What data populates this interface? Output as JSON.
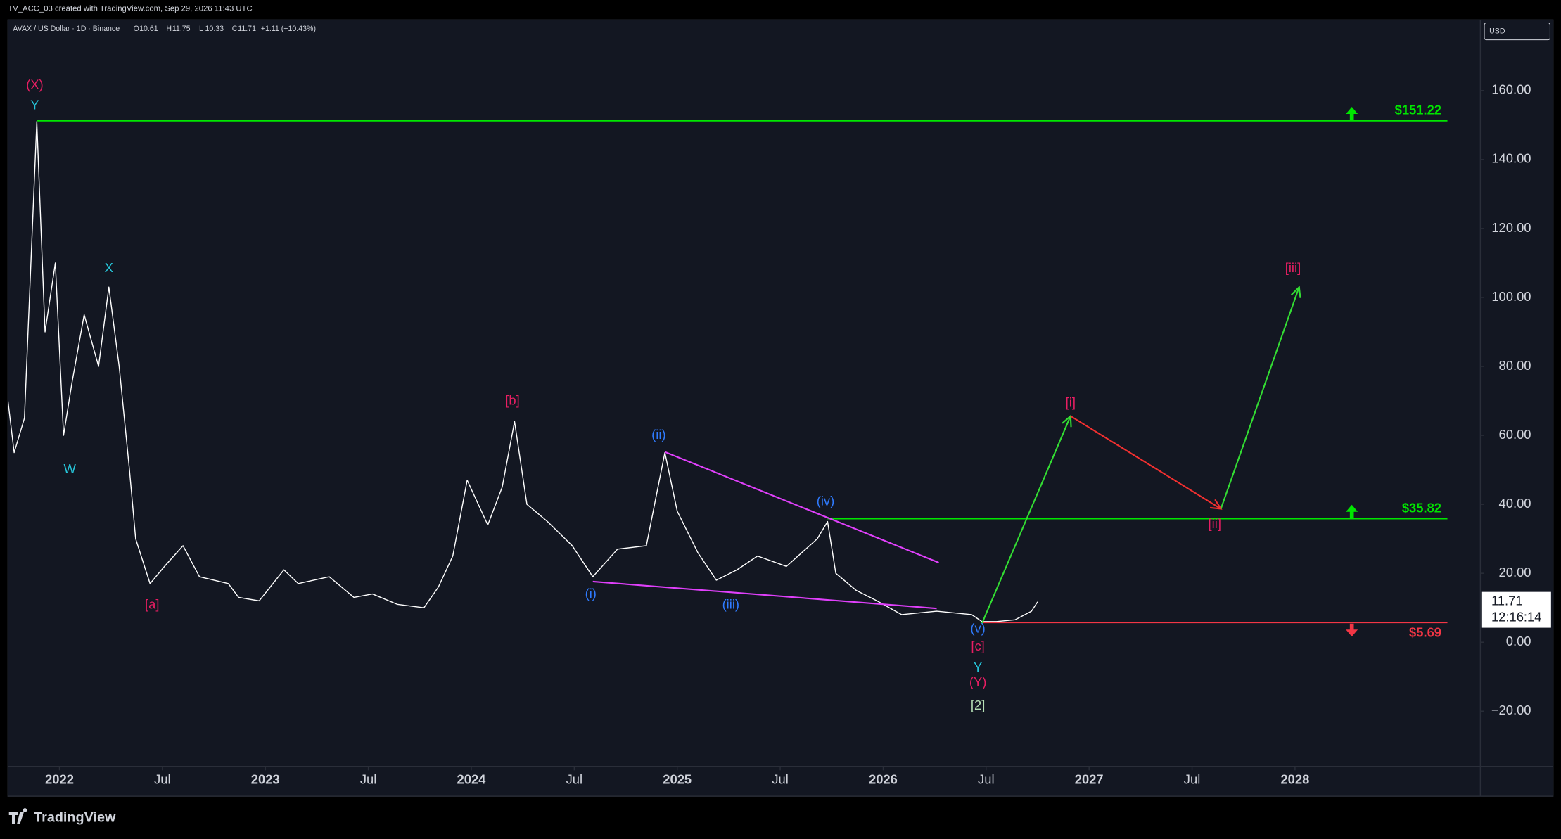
{
  "header": {
    "credit": "TV_ACC_03 created with TradingView.com, Sep 29, 2026 11:43 UTC",
    "brand": "TradingView"
  },
  "chart_data": {
    "type": "line",
    "symbol": "AVAX / US Dollar · 1D · Binance",
    "ohlc": [
      {
        "label": "O",
        "value": 10.61
      },
      {
        "label": "H",
        "value": 11.75
      },
      {
        "label": "L",
        "value": 10.33
      },
      {
        "label": "C",
        "value": 11.71
      }
    ],
    "change": "+1.11 (+10.43%)",
    "currency": "USD",
    "last_price": 11.71,
    "countdown": "12:16:14",
    "xlim": [
      2021.75,
      2028.9
    ],
    "ylim": [
      -36,
      180.5
    ],
    "xticks": [
      2022,
      {
        "value": 2022.5,
        "label": "Jul"
      },
      2023,
      {
        "value": 2023.5,
        "label": "Jul"
      },
      2024,
      {
        "value": 2024.5,
        "label": "Jul"
      },
      2025,
      {
        "value": 2025.5,
        "label": "Jul"
      },
      2026,
      {
        "value": 2026.5,
        "label": "Jul"
      },
      2027,
      {
        "value": 2027.5,
        "label": "Jul"
      },
      2028
    ],
    "yticks": [
      {
        "value": -20,
        "label": "−20.00"
      },
      {
        "value": 0,
        "label": "0.00"
      },
      {
        "value": 20,
        "label": "20.00"
      },
      {
        "value": 40,
        "label": "40.00"
      },
      {
        "value": 60,
        "label": "60.00"
      },
      {
        "value": 80,
        "label": "80.00"
      },
      {
        "value": 100,
        "label": "100.00"
      },
      {
        "value": 120,
        "label": "120.00"
      },
      {
        "value": 140,
        "label": "140.00"
      },
      {
        "value": 160,
        "label": "160.00"
      }
    ],
    "x": [
      2021.75,
      2021.78,
      2021.83,
      2021.89,
      2021.93,
      2021.98,
      2022.02,
      2022.06,
      2022.12,
      2022.19,
      2022.24,
      2022.29,
      2022.34,
      2022.37,
      2022.44,
      2022.51,
      2022.6,
      2022.68,
      2022.82,
      2022.87,
      2022.97,
      2023.09,
      2023.16,
      2023.31,
      2023.43,
      2023.52,
      2023.64,
      2023.77,
      2023.84,
      2023.91,
      2023.98,
      2024.08,
      2024.15,
      2024.21,
      2024.27,
      2024.37,
      2024.49,
      2024.59,
      2024.71,
      2024.85,
      2024.94,
      2025.0,
      2025.1,
      2025.19,
      2025.29,
      2025.39,
      2025.53,
      2025.68,
      2025.73,
      2025.77,
      2025.87,
      2025.97,
      2026.09,
      2026.26,
      2026.43,
      2026.48,
      2026.55,
      2026.64,
      2026.72,
      2026.75
    ],
    "series": [
      {
        "color": "#ffffff",
        "values": [
          70,
          55,
          65,
          151,
          90,
          110,
          60,
          75,
          95,
          80,
          103,
          80,
          50,
          30,
          17,
          22,
          28,
          19,
          17,
          13,
          12,
          21,
          17,
          19,
          13,
          14,
          11,
          10,
          16,
          25,
          47,
          34,
          45,
          64,
          40,
          35,
          28,
          19,
          27,
          28,
          55,
          38,
          26,
          18,
          21,
          25,
          22,
          30,
          35,
          20,
          15,
          12,
          8,
          9,
          8,
          6,
          6,
          6.5,
          9,
          11.71
        ]
      }
    ],
    "levels": [
      {
        "value": 151.22,
        "label": "$151.22",
        "color": "#00e600",
        "x_start": 2021.89,
        "x_end": 2028.74,
        "arrow": "up"
      },
      {
        "value": 35.82,
        "label": "$35.82",
        "color": "#00e600",
        "x_start": 2025.73,
        "x_end": 2028.74,
        "arrow": "up"
      },
      {
        "value": 5.69,
        "label": "$5.69",
        "color": "#f23645",
        "x_start": 2026.48,
        "x_end": 2028.74,
        "arrow": "down"
      }
    ],
    "drawings": [
      {
        "color": "#e040fb",
        "arrow": false,
        "points": [
          [
            2024.94,
            55.2
          ],
          [
            2026.27,
            23.1
          ]
        ]
      },
      {
        "color": "#e040fb",
        "arrow": false,
        "points": [
          [
            2024.59,
            17.6
          ],
          [
            2026.26,
            9.8
          ]
        ]
      },
      {
        "color": "#33dd33",
        "arrow": true,
        "points": [
          [
            2026.48,
            5.5
          ],
          [
            2026.91,
            65.6
          ]
        ]
      },
      {
        "color": "#f23030",
        "arrow": true,
        "points": [
          [
            2026.91,
            65.6
          ],
          [
            2027.64,
            38.7
          ]
        ]
      },
      {
        "color": "#33dd33",
        "arrow": true,
        "points": [
          [
            2027.64,
            38.7
          ],
          [
            2028.02,
            103
          ]
        ]
      }
    ],
    "annotations": [
      {
        "text": "(X)",
        "x": 2021.88,
        "y": 161.5,
        "color": "#e91e63"
      },
      {
        "text": "Y",
        "x": 2021.88,
        "y": 155.5,
        "color": "#26c6da"
      },
      {
        "text": "X",
        "x": 2022.24,
        "y": 108.3,
        "color": "#26c6da"
      },
      {
        "text": "W",
        "x": 2022.05,
        "y": 50,
        "color": "#26c6da"
      },
      {
        "text": "[a]",
        "x": 2022.45,
        "y": 10.7,
        "color": "#e91e63"
      },
      {
        "text": "[b]",
        "x": 2024.2,
        "y": 69.9,
        "color": "#e91e63"
      },
      {
        "text": "(i)",
        "x": 2024.58,
        "y": 13.9,
        "color": "#2f7bff"
      },
      {
        "text": "(ii)",
        "x": 2024.91,
        "y": 60,
        "color": "#2f7bff"
      },
      {
        "text": "(iii)",
        "x": 2025.26,
        "y": 10.7,
        "color": "#2f7bff"
      },
      {
        "text": "(iv)",
        "x": 2025.72,
        "y": 40.7,
        "color": "#2f7bff"
      },
      {
        "text": "(v)",
        "x": 2026.46,
        "y": 3.8,
        "color": "#2f7bff"
      },
      {
        "text": "[c]",
        "x": 2026.46,
        "y": -1.4,
        "color": "#e91e63"
      },
      {
        "text": "Y",
        "x": 2026.46,
        "y": -7.5,
        "color": "#26c6da"
      },
      {
        "text": "(Y)",
        "x": 2026.46,
        "y": -11.8,
        "color": "#e91e63"
      },
      {
        "text": "[2]",
        "x": 2026.46,
        "y": -18.5,
        "color": "#b5e0b5"
      },
      {
        "text": "[i]",
        "x": 2026.91,
        "y": 69.3,
        "color": "#e91e63"
      },
      {
        "text": "[ii]",
        "x": 2027.61,
        "y": 34.1,
        "color": "#e91e63"
      },
      {
        "text": "[iii]",
        "x": 2027.99,
        "y": 108.3,
        "color": "#e91e63"
      }
    ]
  }
}
